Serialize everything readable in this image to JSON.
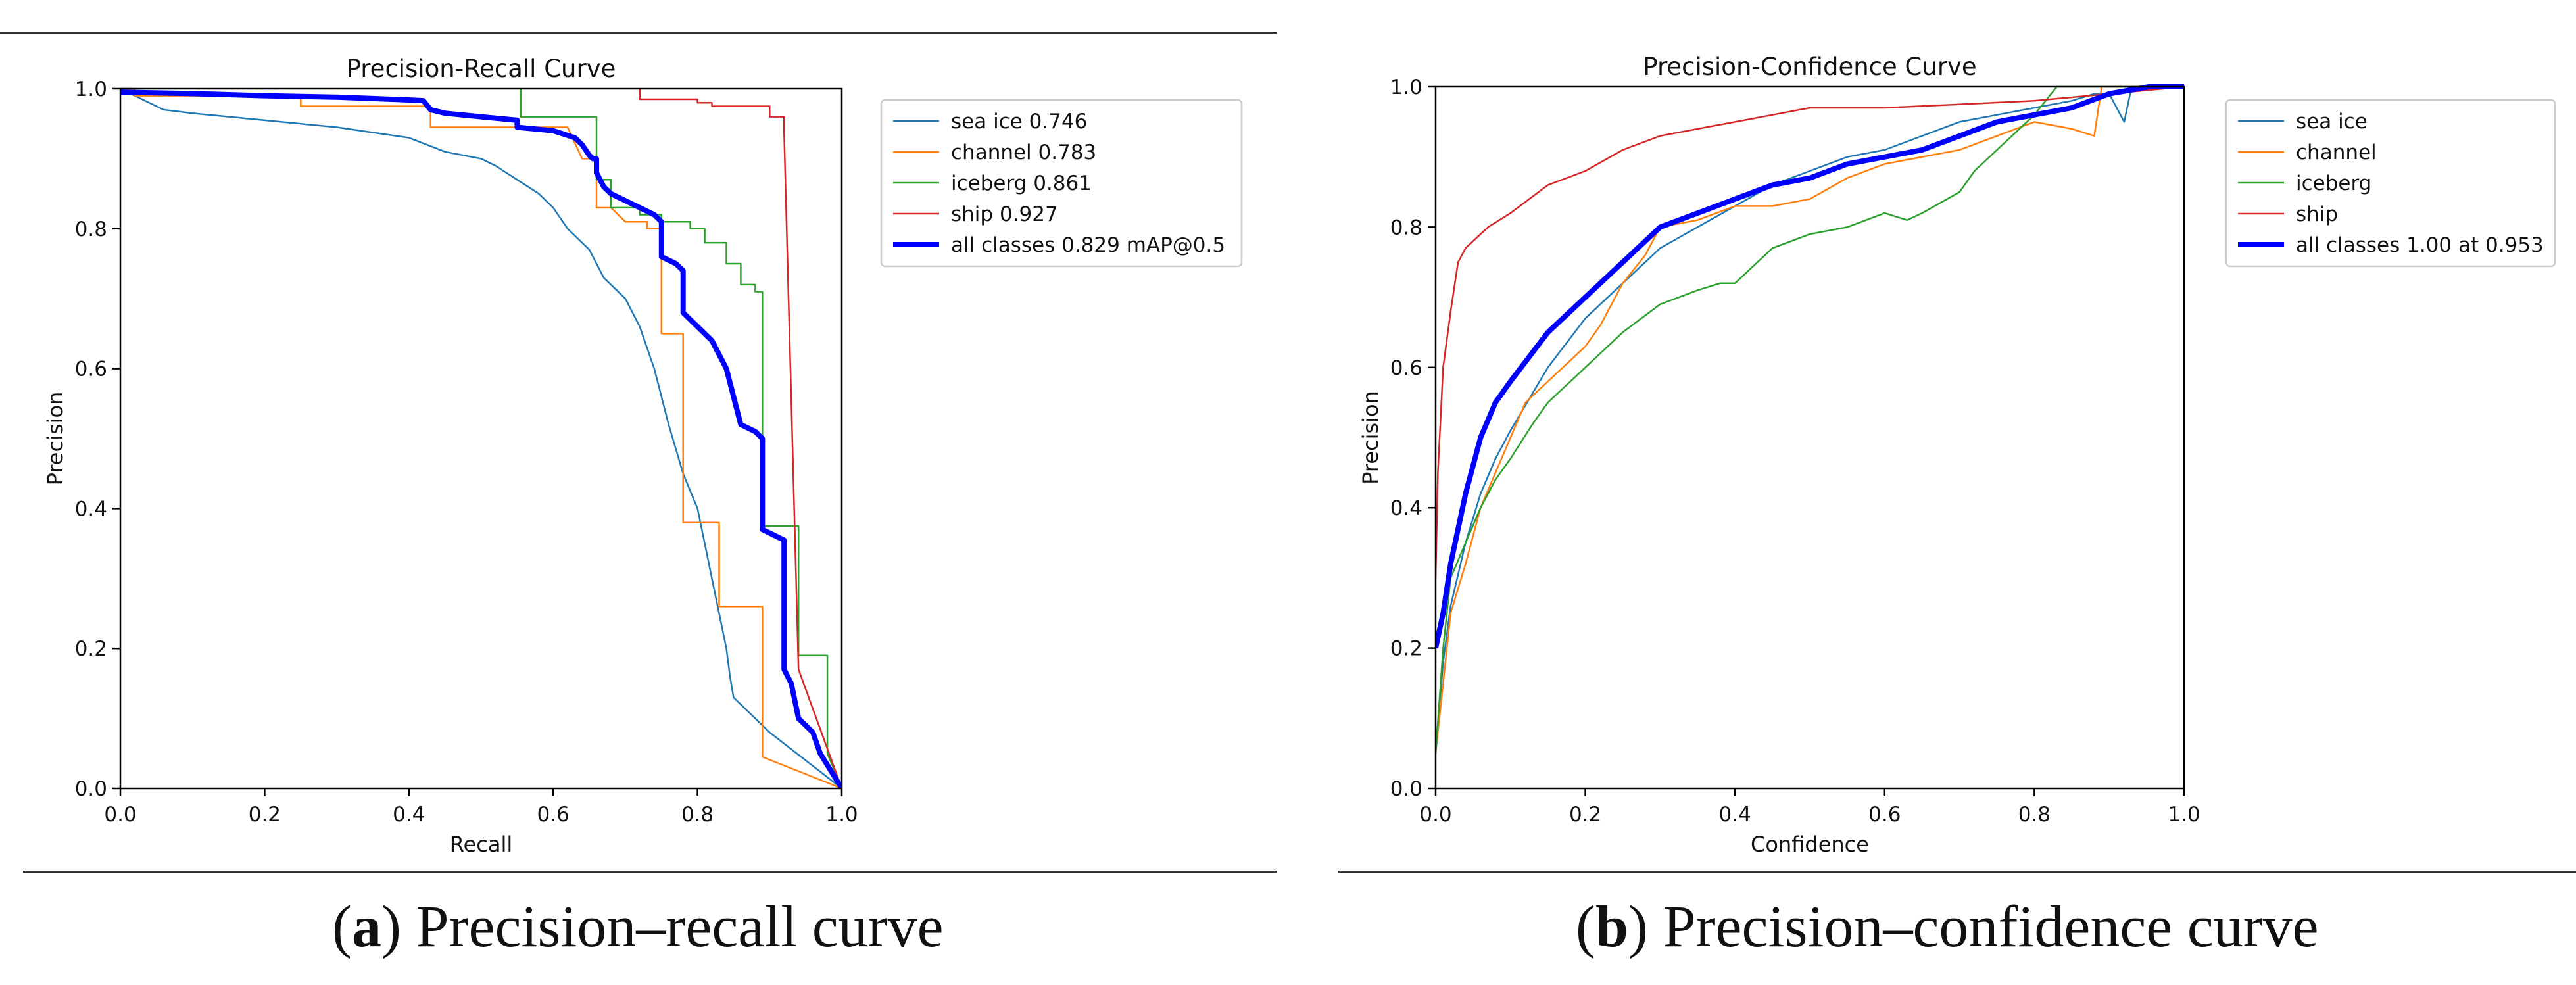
{
  "chart_data": [
    {
      "type": "line",
      "title": "Precision-Recall Curve",
      "xlabel": "Recall",
      "ylabel": "Precision",
      "xlim": [
        0,
        1
      ],
      "ylim": [
        0,
        1
      ],
      "xticks": [
        "0.0",
        "0.2",
        "0.4",
        "0.6",
        "0.8",
        "1.0"
      ],
      "yticks": [
        "0.0",
        "0.2",
        "0.4",
        "0.6",
        "0.8",
        "1.0"
      ],
      "legend_position": "outside-right",
      "series": [
        {
          "name": "sea ice 0.746",
          "color": "#1f77b4",
          "width": 2.5,
          "x": [
            0,
            0.02,
            0.03,
            0.06,
            0.1,
            0.2,
            0.3,
            0.4,
            0.45,
            0.5,
            0.52,
            0.55,
            0.58,
            0.6,
            0.62,
            0.65,
            0.67,
            0.7,
            0.72,
            0.74,
            0.75,
            0.76,
            0.78,
            0.8,
            0.81,
            0.82,
            0.83,
            0.84,
            0.845,
            0.85,
            0.86,
            0.87,
            0.88,
            0.9,
            0.95,
            1.0
          ],
          "y": [
            1.0,
            0.99,
            0.985,
            0.97,
            0.965,
            0.955,
            0.945,
            0.93,
            0.91,
            0.9,
            0.89,
            0.87,
            0.85,
            0.83,
            0.8,
            0.77,
            0.73,
            0.7,
            0.66,
            0.6,
            0.56,
            0.52,
            0.45,
            0.4,
            0.35,
            0.3,
            0.25,
            0.2,
            0.16,
            0.13,
            0.12,
            0.11,
            0.1,
            0.08,
            0.04,
            0.0
          ]
        },
        {
          "name": "channel 0.783",
          "color": "#ff7f0e",
          "width": 2.5,
          "x": [
            0,
            0.02,
            0.02,
            0.25,
            0.25,
            0.43,
            0.43,
            0.57,
            0.62,
            0.64,
            0.66,
            0.66,
            0.68,
            0.7,
            0.73,
            0.73,
            0.75,
            0.75,
            0.78,
            0.78,
            0.83,
            0.83,
            0.89,
            0.89,
            1.0
          ],
          "y": [
            1.0,
            1.0,
            0.99,
            0.99,
            0.975,
            0.975,
            0.945,
            0.945,
            0.945,
            0.9,
            0.9,
            0.83,
            0.83,
            0.81,
            0.81,
            0.8,
            0.8,
            0.65,
            0.65,
            0.38,
            0.38,
            0.26,
            0.26,
            0.045,
            0.0
          ]
        },
        {
          "name": "iceberg 0.861",
          "color": "#2ca02c",
          "width": 2.5,
          "x": [
            0.555,
            0.555,
            0.66,
            0.66,
            0.68,
            0.68,
            0.72,
            0.72,
            0.75,
            0.75,
            0.79,
            0.79,
            0.81,
            0.81,
            0.84,
            0.84,
            0.86,
            0.86,
            0.88,
            0.88,
            0.89,
            0.89,
            0.94,
            0.94,
            0.98,
            0.98,
            1.0
          ],
          "y": [
            1.0,
            0.96,
            0.96,
            0.87,
            0.87,
            0.83,
            0.83,
            0.82,
            0.82,
            0.81,
            0.81,
            0.8,
            0.8,
            0.78,
            0.78,
            0.75,
            0.75,
            0.72,
            0.72,
            0.71,
            0.71,
            0.375,
            0.375,
            0.19,
            0.19,
            0.05,
            0.0
          ]
        },
        {
          "name": "ship 0.927",
          "color": "#d62728",
          "width": 2.5,
          "x": [
            0.72,
            0.72,
            0.8,
            0.8,
            0.82,
            0.82,
            0.9,
            0.9,
            0.92,
            0.92,
            0.94,
            1.0
          ],
          "y": [
            1.0,
            0.985,
            0.985,
            0.98,
            0.98,
            0.975,
            0.975,
            0.96,
            0.96,
            0.94,
            0.17,
            0.0
          ]
        },
        {
          "name": "all classes 0.829 mAP@0.5",
          "color": "#0000ff",
          "width": 8,
          "x": [
            0,
            0.1,
            0.2,
            0.3,
            0.35,
            0.4,
            0.42,
            0.43,
            0.45,
            0.5,
            0.55,
            0.55,
            0.6,
            0.63,
            0.64,
            0.65,
            0.655,
            0.66,
            0.66,
            0.67,
            0.68,
            0.7,
            0.72,
            0.74,
            0.75,
            0.75,
            0.77,
            0.78,
            0.78,
            0.8,
            0.82,
            0.83,
            0.84,
            0.85,
            0.86,
            0.88,
            0.89,
            0.89,
            0.91,
            0.92,
            0.92,
            0.93,
            0.94,
            0.95,
            0.96,
            0.97,
            1.0
          ],
          "y": [
            0.995,
            0.993,
            0.99,
            0.988,
            0.986,
            0.984,
            0.983,
            0.97,
            0.965,
            0.96,
            0.955,
            0.945,
            0.94,
            0.93,
            0.92,
            0.905,
            0.9,
            0.9,
            0.88,
            0.86,
            0.85,
            0.84,
            0.83,
            0.82,
            0.81,
            0.76,
            0.75,
            0.74,
            0.68,
            0.66,
            0.64,
            0.62,
            0.6,
            0.56,
            0.52,
            0.51,
            0.5,
            0.37,
            0.36,
            0.355,
            0.17,
            0.15,
            0.1,
            0.09,
            0.08,
            0.05,
            0.0
          ]
        }
      ]
    },
    {
      "type": "line",
      "title": "Precision-Confidence Curve",
      "xlabel": "Confidence",
      "ylabel": "Precision",
      "xlim": [
        0,
        1
      ],
      "ylim": [
        0,
        1
      ],
      "xticks": [
        "0.0",
        "0.2",
        "0.4",
        "0.6",
        "0.8",
        "1.0"
      ],
      "yticks": [
        "0.0",
        "0.2",
        "0.4",
        "0.6",
        "0.8",
        "1.0"
      ],
      "legend_position": "outside-right",
      "series": [
        {
          "name": "sea ice",
          "color": "#1f77b4",
          "width": 2.5,
          "x": [
            0,
            0.01,
            0.02,
            0.04,
            0.06,
            0.08,
            0.1,
            0.15,
            0.2,
            0.25,
            0.3,
            0.35,
            0.4,
            0.45,
            0.5,
            0.55,
            0.6,
            0.65,
            0.7,
            0.75,
            0.8,
            0.85,
            0.88,
            0.9,
            0.92,
            0.93,
            0.95,
            1.0
          ],
          "y": [
            0.05,
            0.18,
            0.26,
            0.35,
            0.42,
            0.47,
            0.51,
            0.6,
            0.67,
            0.72,
            0.77,
            0.8,
            0.83,
            0.86,
            0.88,
            0.9,
            0.91,
            0.93,
            0.95,
            0.96,
            0.97,
            0.98,
            0.99,
            0.99,
            0.95,
            1.0,
            1.0,
            1.0
          ]
        },
        {
          "name": "channel",
          "color": "#ff7f0e",
          "width": 2.5,
          "x": [
            0,
            0.02,
            0.04,
            0.06,
            0.08,
            0.1,
            0.12,
            0.15,
            0.2,
            0.22,
            0.25,
            0.28,
            0.3,
            0.35,
            0.4,
            0.45,
            0.5,
            0.55,
            0.6,
            0.65,
            0.7,
            0.75,
            0.8,
            0.85,
            0.88,
            0.89,
            1.0
          ],
          "y": [
            0.05,
            0.25,
            0.32,
            0.4,
            0.45,
            0.5,
            0.55,
            0.58,
            0.63,
            0.66,
            0.72,
            0.76,
            0.8,
            0.81,
            0.83,
            0.83,
            0.84,
            0.87,
            0.89,
            0.9,
            0.91,
            0.93,
            0.95,
            0.94,
            0.93,
            1.0,
            1.0
          ]
        },
        {
          "name": "iceberg",
          "color": "#2ca02c",
          "width": 2.5,
          "x": [
            0,
            0.01,
            0.02,
            0.04,
            0.06,
            0.08,
            0.1,
            0.13,
            0.15,
            0.2,
            0.25,
            0.3,
            0.35,
            0.38,
            0.4,
            0.42,
            0.45,
            0.5,
            0.55,
            0.6,
            0.63,
            0.65,
            0.7,
            0.72,
            0.75,
            0.8,
            0.83,
            0.86,
            0.9,
            0.95,
            1.0
          ],
          "y": [
            0.05,
            0.2,
            0.3,
            0.35,
            0.4,
            0.44,
            0.47,
            0.52,
            0.55,
            0.6,
            0.65,
            0.69,
            0.71,
            0.72,
            0.72,
            0.74,
            0.77,
            0.79,
            0.8,
            0.82,
            0.81,
            0.82,
            0.85,
            0.88,
            0.91,
            0.96,
            1.0,
            1.0,
            1.0,
            1.0,
            1.0
          ]
        },
        {
          "name": "ship",
          "color": "#d62728",
          "width": 2.5,
          "x": [
            0,
            0.003,
            0.01,
            0.02,
            0.03,
            0.04,
            0.05,
            0.07,
            0.1,
            0.15,
            0.2,
            0.25,
            0.3,
            0.35,
            0.4,
            0.45,
            0.5,
            0.6,
            0.7,
            0.8,
            0.9,
            1.0
          ],
          "y": [
            0.3,
            0.45,
            0.6,
            0.68,
            0.75,
            0.77,
            0.78,
            0.8,
            0.82,
            0.86,
            0.88,
            0.91,
            0.93,
            0.94,
            0.95,
            0.96,
            0.97,
            0.97,
            0.975,
            0.98,
            0.99,
            1.0
          ]
        },
        {
          "name": "all classes 1.00 at 0.953",
          "color": "#0000ff",
          "width": 8,
          "x": [
            0,
            0.01,
            0.02,
            0.04,
            0.06,
            0.08,
            0.1,
            0.15,
            0.2,
            0.25,
            0.3,
            0.35,
            0.4,
            0.45,
            0.5,
            0.55,
            0.6,
            0.65,
            0.7,
            0.75,
            0.8,
            0.85,
            0.9,
            0.953,
            1.0
          ],
          "y": [
            0.2,
            0.25,
            0.32,
            0.42,
            0.5,
            0.55,
            0.58,
            0.65,
            0.7,
            0.75,
            0.8,
            0.82,
            0.84,
            0.86,
            0.87,
            0.89,
            0.9,
            0.91,
            0.93,
            0.95,
            0.96,
            0.97,
            0.99,
            1.0,
            1.0
          ]
        }
      ]
    }
  ],
  "captions": {
    "a": {
      "label": "a",
      "text": "Precision–recall curve"
    },
    "b": {
      "label": "b",
      "text": "Precision–confidence curve"
    }
  }
}
